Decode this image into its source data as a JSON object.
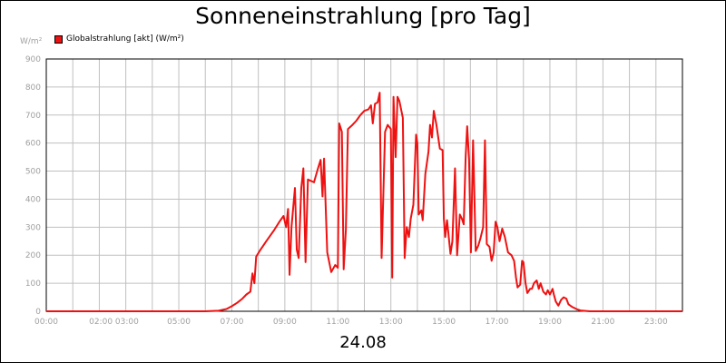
{
  "chart_data": {
    "type": "line",
    "title": "Sonneneinstrahlung [pro Tag]",
    "unit_label": "W/m²",
    "xlabel": "24.08",
    "ylabel": "",
    "ylim": [
      0,
      900
    ],
    "xlim_hours": [
      0,
      24
    ],
    "grid": true,
    "legend_position": "top-left",
    "y_ticks": [
      0,
      100,
      200,
      300,
      400,
      500,
      600,
      700,
      800,
      900
    ],
    "x_ticks": [
      {
        "label": "00:00",
        "hour": 0
      },
      {
        "label": "02:00 03:00",
        "hour": 2.55
      },
      {
        "label": "05:00",
        "hour": 5
      },
      {
        "label": "07:00",
        "hour": 7
      },
      {
        "label": "09:00",
        "hour": 9
      },
      {
        "label": "11:00",
        "hour": 11
      },
      {
        "label": "13:00",
        "hour": 13
      },
      {
        "label": "15:00",
        "hour": 15
      },
      {
        "label": "17:00",
        "hour": 17
      },
      {
        "label": "19:00",
        "hour": 19
      },
      {
        "label": "21:00",
        "hour": 21
      },
      {
        "label": "23:00",
        "hour": 23
      }
    ],
    "series": [
      {
        "name": "Globalstrahlung [akt] (W/m²)",
        "color": "#ee1111",
        "points": [
          [
            0.0,
            0
          ],
          [
            6.0,
            0
          ],
          [
            6.5,
            2
          ],
          [
            6.8,
            8
          ],
          [
            7.0,
            18
          ],
          [
            7.2,
            30
          ],
          [
            7.4,
            45
          ],
          [
            7.55,
            60
          ],
          [
            7.7,
            70
          ],
          [
            7.78,
            135
          ],
          [
            7.85,
            100
          ],
          [
            7.92,
            195
          ],
          [
            8.05,
            215
          ],
          [
            8.3,
            250
          ],
          [
            8.6,
            290
          ],
          [
            8.8,
            320
          ],
          [
            8.95,
            340
          ],
          [
            9.05,
            300
          ],
          [
            9.12,
            365
          ],
          [
            9.18,
            130
          ],
          [
            9.25,
            300
          ],
          [
            9.38,
            440
          ],
          [
            9.45,
            220
          ],
          [
            9.52,
            190
          ],
          [
            9.62,
            440
          ],
          [
            9.7,
            510
          ],
          [
            9.78,
            175
          ],
          [
            9.87,
            470
          ],
          [
            10.1,
            460
          ],
          [
            10.25,
            510
          ],
          [
            10.35,
            540
          ],
          [
            10.42,
            410
          ],
          [
            10.48,
            545
          ],
          [
            10.6,
            210
          ],
          [
            10.75,
            140
          ],
          [
            10.9,
            165
          ],
          [
            11.0,
            155
          ],
          [
            11.05,
            670
          ],
          [
            11.15,
            640
          ],
          [
            11.22,
            150
          ],
          [
            11.3,
            290
          ],
          [
            11.38,
            650
          ],
          [
            11.55,
            665
          ],
          [
            11.7,
            680
          ],
          [
            11.85,
            700
          ],
          [
            12.0,
            715
          ],
          [
            12.15,
            720
          ],
          [
            12.25,
            735
          ],
          [
            12.32,
            670
          ],
          [
            12.4,
            740
          ],
          [
            12.5,
            745
          ],
          [
            12.58,
            780
          ],
          [
            12.65,
            190
          ],
          [
            12.78,
            640
          ],
          [
            12.88,
            665
          ],
          [
            13.0,
            650
          ],
          [
            13.05,
            120
          ],
          [
            13.1,
            765
          ],
          [
            13.18,
            550
          ],
          [
            13.25,
            765
          ],
          [
            13.32,
            750
          ],
          [
            13.45,
            690
          ],
          [
            13.52,
            190
          ],
          [
            13.6,
            300
          ],
          [
            13.68,
            265
          ],
          [
            13.75,
            330
          ],
          [
            13.85,
            380
          ],
          [
            13.95,
            630
          ],
          [
            14.0,
            600
          ],
          [
            14.05,
            345
          ],
          [
            14.15,
            360
          ],
          [
            14.2,
            325
          ],
          [
            14.3,
            490
          ],
          [
            14.42,
            570
          ],
          [
            14.48,
            665
          ],
          [
            14.55,
            620
          ],
          [
            14.62,
            715
          ],
          [
            14.72,
            665
          ],
          [
            14.85,
            580
          ],
          [
            14.95,
            575
          ],
          [
            15.0,
            330
          ],
          [
            15.05,
            265
          ],
          [
            15.12,
            325
          ],
          [
            15.25,
            205
          ],
          [
            15.32,
            250
          ],
          [
            15.42,
            510
          ],
          [
            15.5,
            200
          ],
          [
            15.6,
            345
          ],
          [
            15.68,
            330
          ],
          [
            15.75,
            310
          ],
          [
            15.82,
            550
          ],
          [
            15.88,
            660
          ],
          [
            15.95,
            540
          ],
          [
            16.02,
            210
          ],
          [
            16.1,
            610
          ],
          [
            16.2,
            215
          ],
          [
            16.3,
            235
          ],
          [
            16.38,
            260
          ],
          [
            16.48,
            300
          ],
          [
            16.55,
            610
          ],
          [
            16.62,
            240
          ],
          [
            16.72,
            230
          ],
          [
            16.8,
            180
          ],
          [
            16.88,
            210
          ],
          [
            16.95,
            320
          ],
          [
            17.02,
            300
          ],
          [
            17.1,
            250
          ],
          [
            17.2,
            295
          ],
          [
            17.3,
            265
          ],
          [
            17.42,
            210
          ],
          [
            17.55,
            200
          ],
          [
            17.65,
            180
          ],
          [
            17.72,
            120
          ],
          [
            17.78,
            85
          ],
          [
            17.88,
            95
          ],
          [
            17.95,
            180
          ],
          [
            18.0,
            175
          ],
          [
            18.08,
            100
          ],
          [
            18.15,
            65
          ],
          [
            18.25,
            80
          ],
          [
            18.32,
            80
          ],
          [
            18.4,
            100
          ],
          [
            18.5,
            110
          ],
          [
            18.58,
            80
          ],
          [
            18.65,
            100
          ],
          [
            18.75,
            70
          ],
          [
            18.85,
            60
          ],
          [
            18.92,
            75
          ],
          [
            19.0,
            60
          ],
          [
            19.1,
            80
          ],
          [
            19.15,
            60
          ],
          [
            19.22,
            35
          ],
          [
            19.32,
            20
          ],
          [
            19.42,
            40
          ],
          [
            19.52,
            50
          ],
          [
            19.62,
            45
          ],
          [
            19.7,
            25
          ],
          [
            19.85,
            15
          ],
          [
            20.0,
            8
          ],
          [
            20.15,
            3
          ],
          [
            20.5,
            0
          ],
          [
            24.0,
            0
          ]
        ]
      }
    ]
  }
}
